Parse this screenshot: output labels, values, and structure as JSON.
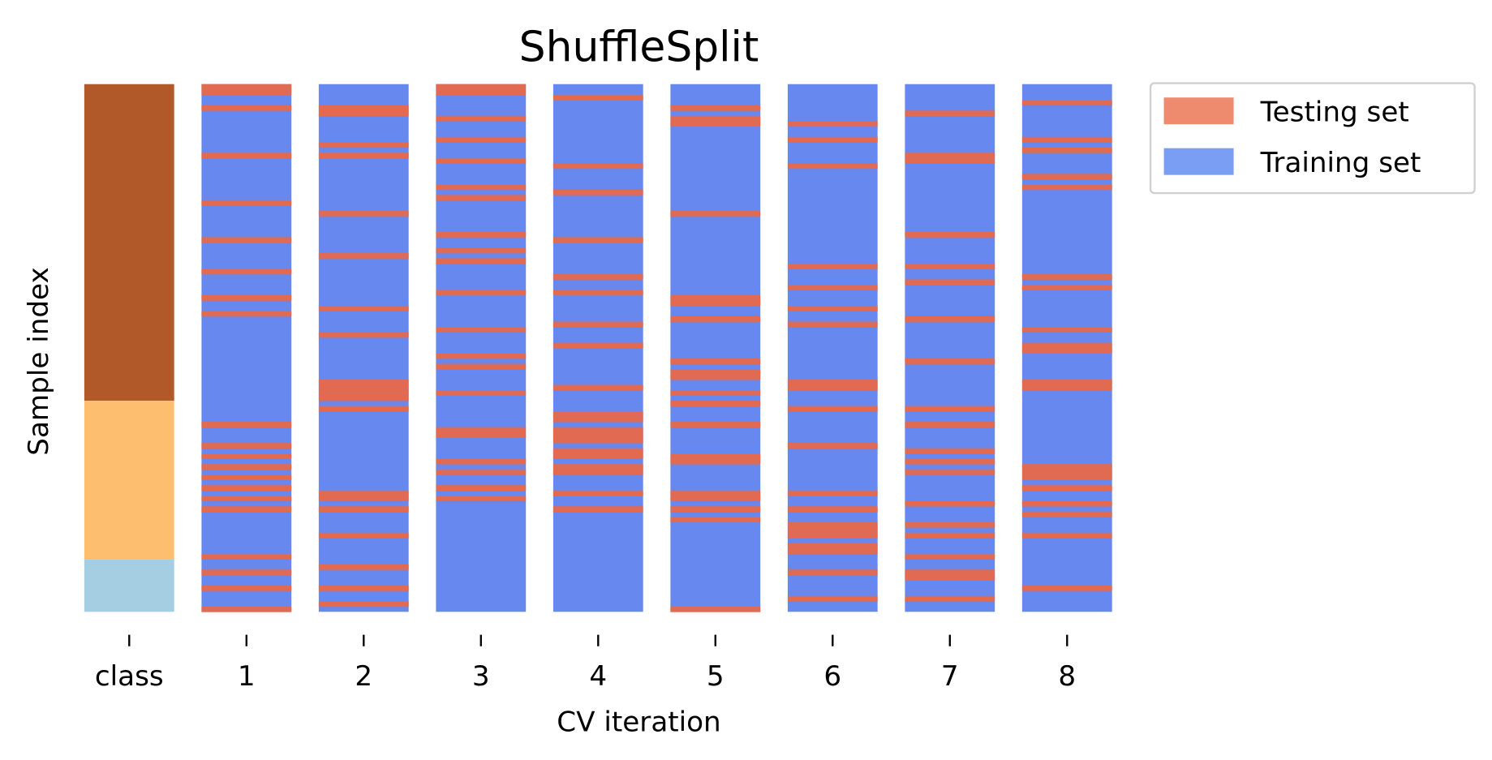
{
  "chart_data": {
    "type": "heatmap",
    "title": "ShuffleSplit",
    "xlabel": "CV iteration",
    "ylabel": "Sample index",
    "n_samples": 100,
    "x_tick_labels": [
      "class",
      "1",
      "2",
      "3",
      "4",
      "5",
      "6",
      "7",
      "8"
    ],
    "grid": false,
    "legend_placement": "upper right outside",
    "classes": [
      {
        "class": 2,
        "range": [
          0,
          59
        ],
        "color": "#b15928"
      },
      {
        "class": 1,
        "range": [
          60,
          89
        ],
        "color": "#fdbf6f"
      },
      {
        "class": 0,
        "range": [
          90,
          99
        ],
        "color": "#a6cee3"
      }
    ],
    "legend": [
      {
        "label": "Testing set",
        "color": "#ee8a6e"
      },
      {
        "label": "Training set",
        "color": "#7b9ef5"
      }
    ],
    "colors": {
      "test": "#e06a52",
      "train": "#6788ee"
    },
    "iterations": [
      {
        "label": "1",
        "test_indices": [
          0,
          1,
          4,
          13,
          22,
          29,
          35,
          40,
          43,
          64,
          68,
          70,
          72,
          74,
          76,
          78,
          80,
          89,
          92,
          95,
          99
        ]
      },
      {
        "label": "2",
        "test_indices": [
          4,
          5,
          11,
          13,
          24,
          32,
          42,
          47,
          56,
          57,
          58,
          59,
          61,
          77,
          78,
          80,
          85,
          91,
          95,
          98
        ]
      },
      {
        "label": "3",
        "test_indices": [
          0,
          1,
          6,
          10,
          14,
          19,
          21,
          28,
          31,
          33,
          39,
          46,
          51,
          53,
          58,
          65,
          66,
          71,
          73,
          76,
          78
        ]
      },
      {
        "label": "4",
        "test_indices": [
          2,
          15,
          20,
          29,
          36,
          39,
          45,
          49,
          57,
          62,
          63,
          65,
          66,
          67,
          69,
          70,
          72,
          73,
          77,
          80
        ]
      },
      {
        "label": "5",
        "test_indices": [
          4,
          6,
          7,
          24,
          40,
          41,
          44,
          52,
          54,
          55,
          58,
          60,
          64,
          70,
          71,
          77,
          78,
          80,
          82,
          99
        ]
      },
      {
        "label": "6",
        "test_indices": [
          7,
          10,
          15,
          34,
          38,
          42,
          45,
          56,
          57,
          61,
          68,
          77,
          80,
          83,
          84,
          85,
          87,
          88,
          92,
          97
        ]
      },
      {
        "label": "7",
        "test_indices": [
          5,
          13,
          14,
          28,
          34,
          37,
          44,
          52,
          61,
          64,
          69,
          71,
          73,
          79,
          83,
          85,
          89,
          92,
          93,
          97
        ]
      },
      {
        "label": "8",
        "test_indices": [
          3,
          10,
          12,
          17,
          19,
          36,
          38,
          46,
          49,
          50,
          56,
          57,
          72,
          73,
          74,
          76,
          79,
          81,
          85,
          95
        ]
      }
    ]
  }
}
